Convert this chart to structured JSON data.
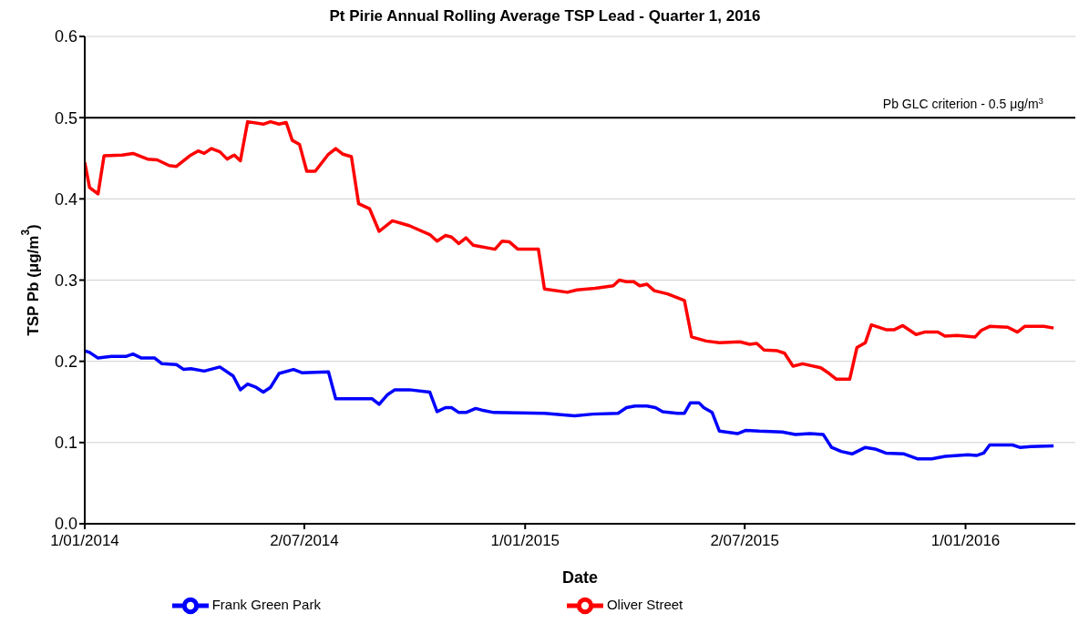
{
  "chart_data": {
    "type": "line",
    "title": "Pt Pirie Annual Rolling Average TSP Lead - Quarter 1, 2016",
    "xlabel": "Date",
    "ylabel": "TSP Pb (μg/m$^{3}$)",
    "xlim": [
      "2014-01-01",
      "2016-04-01"
    ],
    "xticks": [
      {
        "value": "2014-01-01",
        "label": "1/01/2014"
      },
      {
        "value": "2014-07-02",
        "label": "2/07/2014"
      },
      {
        "value": "2015-01-01",
        "label": "1/01/2015"
      },
      {
        "value": "2015-07-02",
        "label": "2/07/2015"
      },
      {
        "value": "2016-01-01",
        "label": "1/01/2016"
      }
    ],
    "ylim": [
      0,
      0.6
    ],
    "yticks": [
      {
        "value": 0,
        "label": "0.0"
      },
      {
        "value": 0.1,
        "label": "0.1"
      },
      {
        "value": 0.2,
        "label": "0.2"
      },
      {
        "value": 0.3,
        "label": "0.3"
      },
      {
        "value": 0.4,
        "label": "0.4"
      },
      {
        "value": 0.5,
        "label": "0.5"
      },
      {
        "value": 0.6,
        "label": "0.6"
      }
    ],
    "grid": "y",
    "legend": "bottom",
    "marker": "none",
    "line_style": "solid",
    "ref_lines": [
      {
        "axis": "y",
        "value": 0.5,
        "label": "Pb GLC criterion - 0.5 μg/m$^{3}$",
        "color": "#000000"
      }
    ],
    "series": [
      {
        "name": "Frank Green Park",
        "color": "#0000ff",
        "x": [
          "2014-01-01",
          "2014-01-05",
          "2014-01-12",
          "2014-01-23",
          "2014-02-04",
          "2014-02-10",
          "2014-02-17",
          "2014-02-28",
          "2014-03-06",
          "2014-03-18",
          "2014-03-24",
          "2014-03-30",
          "2014-04-10",
          "2014-04-23",
          "2014-05-04",
          "2014-05-10",
          "2014-05-16",
          "2014-05-23",
          "2014-05-29",
          "2014-06-04",
          "2014-06-11",
          "2014-06-23",
          "2014-06-30",
          "2014-07-22",
          "2014-07-28",
          "2014-08-27",
          "2014-09-02",
          "2014-09-09",
          "2014-09-15",
          "2014-09-27",
          "2014-10-14",
          "2014-10-20",
          "2014-10-27",
          "2014-11-01",
          "2014-11-07",
          "2014-11-13",
          "2014-11-21",
          "2014-11-26",
          "2014-12-06",
          "2015-01-17",
          "2015-02-11",
          "2015-02-26",
          "2015-03-19",
          "2015-03-26",
          "2015-04-02",
          "2015-04-12",
          "2015-04-19",
          "2015-04-25",
          "2015-05-07",
          "2015-05-13",
          "2015-05-18",
          "2015-05-25",
          "2015-05-29",
          "2015-06-05",
          "2015-06-11",
          "2015-06-26",
          "2015-07-03",
          "2015-07-14",
          "2015-08-02",
          "2015-08-13",
          "2015-08-25",
          "2015-09-05",
          "2015-09-12",
          "2015-09-20",
          "2015-09-29",
          "2015-10-10",
          "2015-10-18",
          "2015-10-27",
          "2015-11-11",
          "2015-11-22",
          "2015-12-04",
          "2015-12-15",
          "2016-01-03",
          "2016-01-10",
          "2016-01-16",
          "2016-01-21",
          "2016-02-09",
          "2016-02-15",
          "2016-02-24",
          "2016-03-14"
        ],
        "values": [
          0.213,
          0.211,
          0.204,
          0.206,
          0.206,
          0.209,
          0.204,
          0.204,
          0.197,
          0.196,
          0.19,
          0.191,
          0.188,
          0.193,
          0.182,
          0.165,
          0.172,
          0.168,
          0.162,
          0.168,
          0.185,
          0.19,
          0.186,
          0.187,
          0.154,
          0.154,
          0.147,
          0.159,
          0.165,
          0.165,
          0.162,
          0.138,
          0.143,
          0.143,
          0.137,
          0.137,
          0.142,
          0.14,
          0.137,
          0.136,
          0.133,
          0.135,
          0.136,
          0.143,
          0.145,
          0.145,
          0.143,
          0.138,
          0.136,
          0.136,
          0.149,
          0.149,
          0.143,
          0.137,
          0.114,
          0.111,
          0.115,
          0.114,
          0.113,
          0.11,
          0.111,
          0.11,
          0.094,
          0.089,
          0.086,
          0.094,
          0.092,
          0.087,
          0.086,
          0.08,
          0.08,
          0.083,
          0.085,
          0.084,
          0.087,
          0.097,
          0.097,
          0.094,
          0.095,
          0.096
        ]
      },
      {
        "name": "Oliver Street",
        "color": "#ff0000",
        "x": [
          "2014-01-01",
          "2014-01-05",
          "2014-01-12",
          "2014-01-17",
          "2014-02-01",
          "2014-02-10",
          "2014-02-22",
          "2014-03-02",
          "2014-03-12",
          "2014-03-18",
          "2014-03-29",
          "2014-04-05",
          "2014-04-10",
          "2014-04-16",
          "2014-04-23",
          "2014-04-29",
          "2014-05-05",
          "2014-05-10",
          "2014-05-16",
          "2014-05-29",
          "2014-06-04",
          "2014-06-11",
          "2014-06-17",
          "2014-06-22",
          "2014-06-28",
          "2014-07-04",
          "2014-07-11",
          "2014-07-22",
          "2014-07-28",
          "2014-08-03",
          "2014-08-10",
          "2014-08-16",
          "2014-08-25",
          "2014-09-02",
          "2014-09-13",
          "2014-09-27",
          "2014-10-14",
          "2014-10-20",
          "2014-10-27",
          "2014-11-01",
          "2014-11-07",
          "2014-11-13",
          "2014-11-19",
          "2014-12-07",
          "2014-12-13",
          "2014-12-19",
          "2014-12-26",
          "2015-01-12",
          "2015-01-17",
          "2015-02-05",
          "2015-02-13",
          "2015-02-28",
          "2015-03-15",
          "2015-03-20",
          "2015-03-26",
          "2015-04-01",
          "2015-04-06",
          "2015-04-12",
          "2015-04-18",
          "2015-04-29",
          "2015-05-13",
          "2015-05-19",
          "2015-05-31",
          "2015-06-11",
          "2015-06-28",
          "2015-07-06",
          "2015-07-12",
          "2015-07-18",
          "2015-07-29",
          "2015-08-04",
          "2015-08-11",
          "2015-08-19",
          "2015-09-03",
          "2015-09-10",
          "2015-09-16",
          "2015-09-27",
          "2015-10-03",
          "2015-10-10",
          "2015-10-15",
          "2015-10-27",
          "2015-11-03",
          "2015-11-10",
          "2015-11-21",
          "2015-11-28",
          "2015-12-09",
          "2015-12-15",
          "2015-12-25",
          "2016-01-09",
          "2016-01-14",
          "2016-01-21",
          "2016-02-05",
          "2016-02-13",
          "2016-02-19",
          "2016-03-06",
          "2016-03-14"
        ],
        "values": [
          0.445,
          0.414,
          0.406,
          0.453,
          0.454,
          0.456,
          0.449,
          0.448,
          0.441,
          0.44,
          0.453,
          0.459,
          0.456,
          0.462,
          0.458,
          0.449,
          0.454,
          0.447,
          0.495,
          0.492,
          0.495,
          0.492,
          0.494,
          0.472,
          0.467,
          0.434,
          0.434,
          0.455,
          0.462,
          0.455,
          0.452,
          0.394,
          0.388,
          0.36,
          0.373,
          0.367,
          0.356,
          0.348,
          0.355,
          0.353,
          0.345,
          0.352,
          0.343,
          0.338,
          0.348,
          0.347,
          0.338,
          0.338,
          0.289,
          0.285,
          0.288,
          0.29,
          0.293,
          0.3,
          0.298,
          0.298,
          0.293,
          0.295,
          0.287,
          0.283,
          0.275,
          0.23,
          0.225,
          0.223,
          0.224,
          0.221,
          0.222,
          0.214,
          0.213,
          0.21,
          0.194,
          0.197,
          0.192,
          0.185,
          0.178,
          0.178,
          0.217,
          0.223,
          0.245,
          0.239,
          0.239,
          0.244,
          0.233,
          0.236,
          0.236,
          0.231,
          0.232,
          0.23,
          0.238,
          0.243,
          0.242,
          0.236,
          0.243,
          0.243,
          0.241
        ]
      }
    ]
  }
}
